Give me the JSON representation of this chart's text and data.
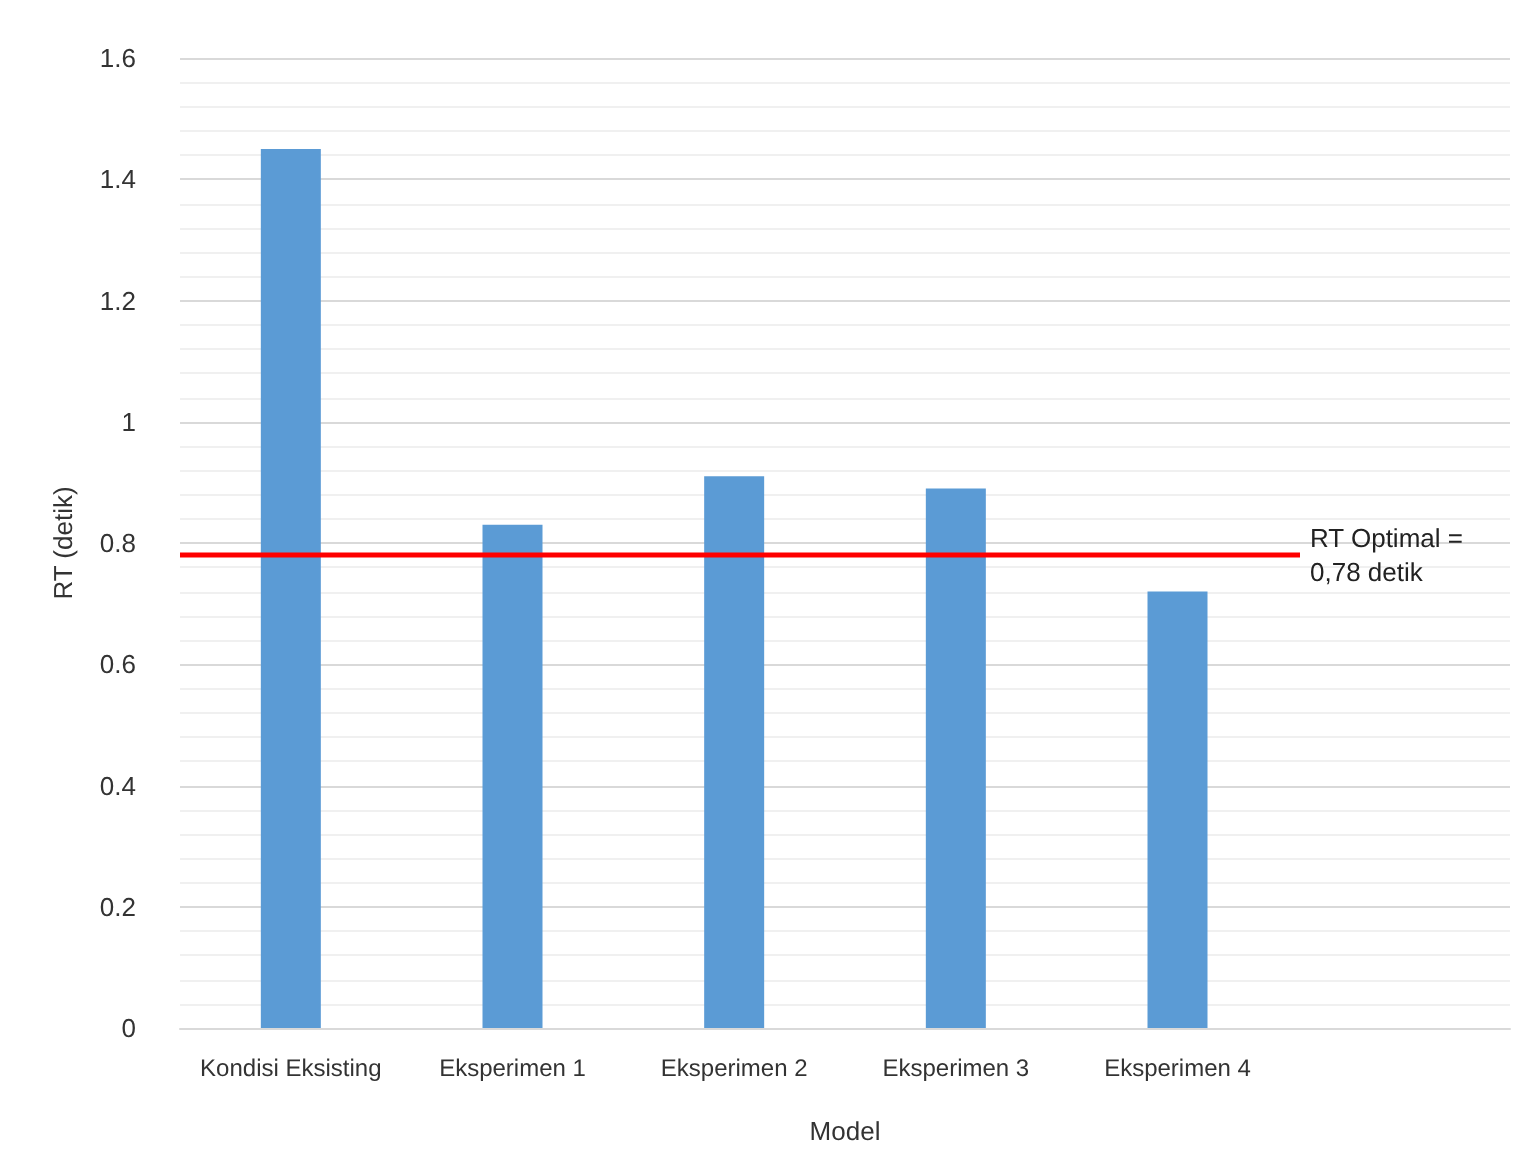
{
  "chart_data": {
    "type": "bar",
    "xlabel": "Model",
    "ylabel": "RT (detik)",
    "categories": [
      "Kondisi Eksisting",
      "Eksperimen 1",
      "Eksperimen 2",
      "Eksperimen 3",
      "Eksperimen 4",
      null
    ],
    "values": [
      1.45,
      0.83,
      0.91,
      0.89,
      0.72,
      null
    ],
    "color": "#5b9bd5",
    "ylim": [
      0,
      1.6
    ],
    "yticks": [
      0,
      0.2,
      0.4,
      0.6,
      0.8,
      1,
      1.2,
      1.4,
      1.6
    ],
    "grid": "y",
    "ref_lines": [
      {
        "axis": "y",
        "value": 0.78,
        "label": "RT Optimal = 0,78 detik",
        "color": "#ff0000"
      }
    ]
  }
}
